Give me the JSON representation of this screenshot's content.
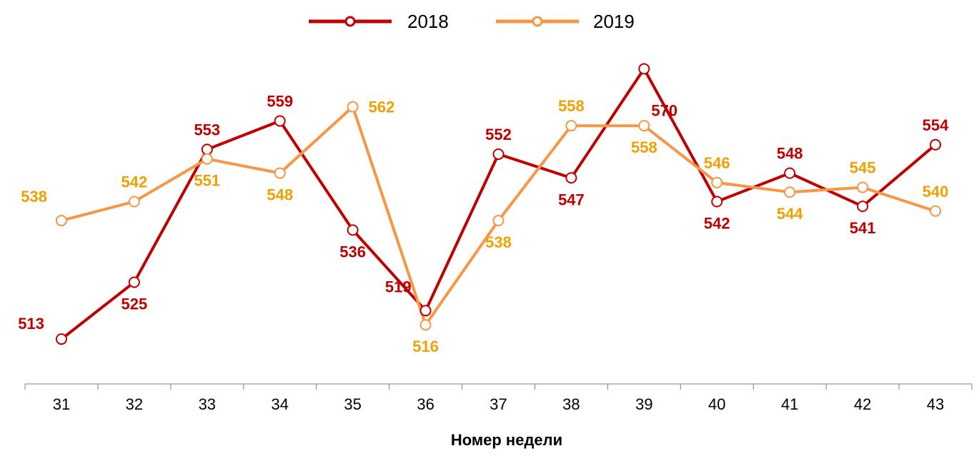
{
  "chart_data": {
    "type": "line",
    "title": "",
    "xlabel": "Номер недели",
    "ylabel": "",
    "categories": [
      "31",
      "32",
      "33",
      "34",
      "35",
      "36",
      "37",
      "38",
      "39",
      "40",
      "41",
      "42",
      "43"
    ],
    "ylim": [
      490,
      580
    ],
    "grid": false,
    "legend_position": "top-center",
    "series": [
      {
        "name": "2018",
        "color": "#C00000",
        "values": [
          513,
          525,
          553,
          559,
          536,
          519,
          552,
          547,
          570,
          542,
          548,
          541,
          554
        ],
        "label_positions": [
          "left",
          "below",
          "above",
          "above",
          "below",
          "above-left",
          "above",
          "below",
          "above-right-lower",
          "below",
          "above",
          "below",
          "above"
        ]
      },
      {
        "name": "2019",
        "color": "#F79646",
        "label_color": "#F0A000",
        "values": [
          538,
          542,
          551,
          548,
          562,
          516,
          538,
          558,
          558,
          546,
          544,
          545,
          540
        ],
        "label_positions": [
          "above-left",
          "above",
          "below",
          "below",
          "right",
          "below",
          "below",
          "above",
          "below",
          "above",
          "below",
          "above",
          "above"
        ]
      }
    ]
  }
}
